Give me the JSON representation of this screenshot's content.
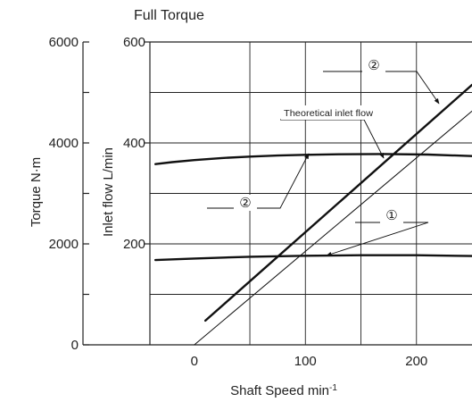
{
  "chart_data": {
    "type": "line",
    "title": "Full Torque",
    "xlabel": "Shaft Speed min⁻¹",
    "ylabel_left": "Torque N·m",
    "ylabel_right": "Inlet flow L/min",
    "xlim": [
      -40,
      250
    ],
    "ylim_flow": [
      0,
      600
    ],
    "ylim_torque": [
      0,
      6000
    ],
    "x_ticks": [
      "0",
      "100",
      "200"
    ],
    "flow_ticks": [
      "200",
      "400",
      "600"
    ],
    "torque_ticks": [
      "0",
      "2000",
      "4000",
      "6000"
    ],
    "grid": true,
    "series": [
      {
        "name": "②",
        "axis": "flow",
        "style": "thick",
        "x": [
          10,
          250
        ],
        "values": [
          48,
          515
        ]
      },
      {
        "name": "Theoretical inlet flow",
        "axis": "flow",
        "style": "thin",
        "x": [
          0,
          250
        ],
        "values": [
          0,
          463
        ]
      },
      {
        "name": "②",
        "axis": "torque",
        "style": "thick",
        "x": [
          -35,
          -20,
          0,
          25,
          50,
          75,
          100,
          130,
          170,
          210,
          250
        ],
        "values": [
          3580,
          3620,
          3660,
          3700,
          3730,
          3750,
          3765,
          3775,
          3780,
          3770,
          3740
        ]
      },
      {
        "name": "①",
        "axis": "torque",
        "style": "thick",
        "x": [
          -35,
          0,
          50,
          100,
          150,
          200,
          250
        ],
        "values": [
          1680,
          1710,
          1745,
          1765,
          1775,
          1775,
          1760
        ]
      }
    ],
    "annotations": [
      "②",
      "Theoretical inlet flow",
      "②",
      "①"
    ]
  }
}
